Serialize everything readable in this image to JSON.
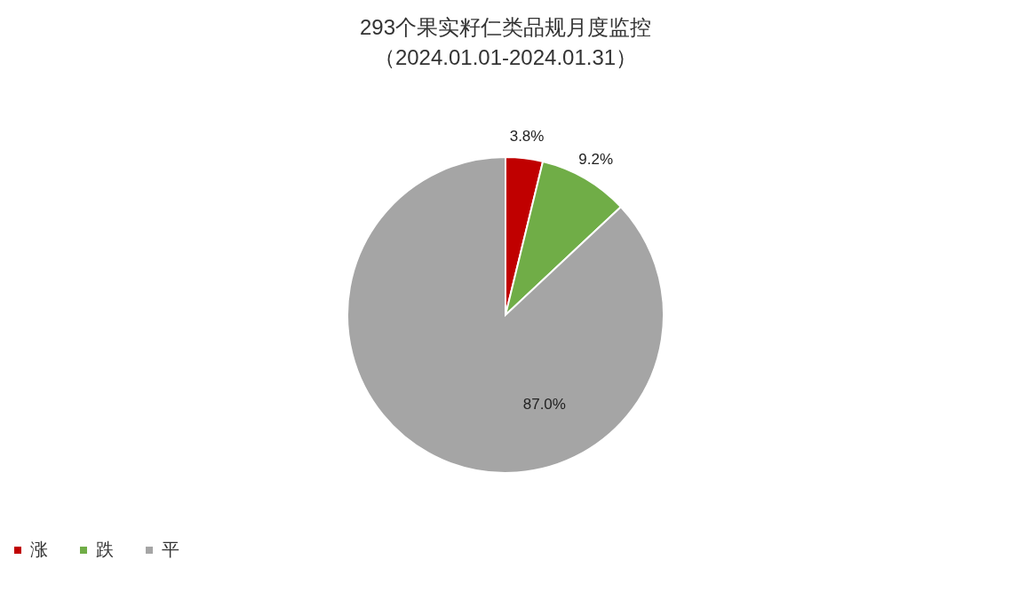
{
  "chart_data": {
    "type": "pie",
    "title": "293个果实籽仁类品规月度监控",
    "subtitle": "（2024.01.01-2024.01.31）",
    "categories": [
      "涨",
      "跌",
      "平"
    ],
    "values": [
      3.8,
      9.2,
      87.0
    ],
    "value_labels": [
      "3.8%",
      "9.2%",
      "87.0%"
    ],
    "colors": [
      "#c00000",
      "#70ad47",
      "#a5a5a5"
    ],
    "legend": "bottom"
  }
}
